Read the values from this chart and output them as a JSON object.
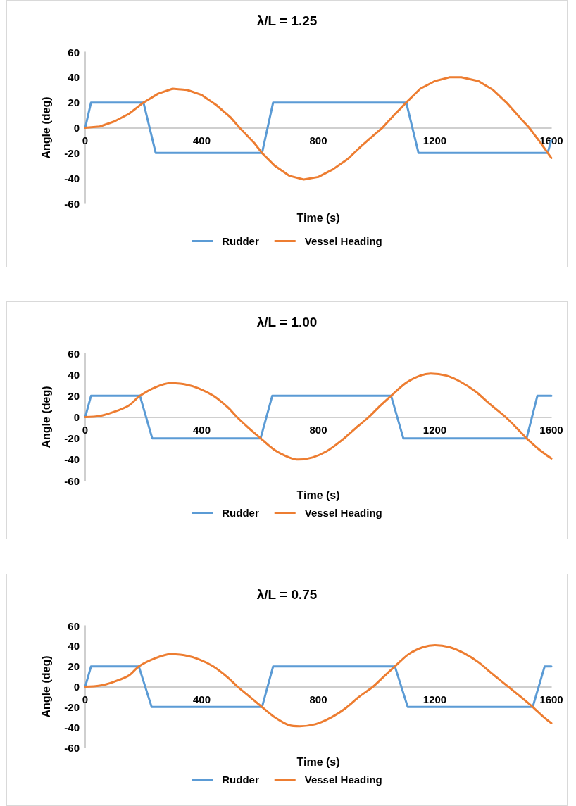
{
  "chart_data": [
    {
      "type": "line",
      "title": "λ/L = 1.25",
      "xlabel": "Time (s)",
      "ylabel": "Angle (deg)",
      "xlim": [
        0,
        1600
      ],
      "xticks": [
        0,
        400,
        800,
        1200,
        1600
      ],
      "ylim": [
        -60,
        60
      ],
      "yticks": [
        -60,
        -40,
        -20,
        0,
        20,
        40,
        60
      ],
      "grid": false,
      "legend": "bottom",
      "marker": "none",
      "line_style": "solid",
      "series": [
        {
          "name": "Rudder",
          "color": "#5b9bd5",
          "x": [
            0,
            20,
            200,
            242,
            607,
            645,
            1102,
            1144,
            1587,
            1600
          ],
          "values": [
            0,
            20,
            20,
            -20,
            -20,
            20,
            20,
            -20,
            -20,
            -10
          ]
        },
        {
          "name": "Vessel Heading",
          "color": "#ed7d31",
          "x": [
            0,
            50,
            100,
            150,
            200,
            250,
            300,
            350,
            400,
            450,
            500,
            530,
            580,
            607,
            650,
            700,
            750,
            800,
            850,
            900,
            950,
            1000,
            1020,
            1060,
            1102,
            1150,
            1200,
            1250,
            1291,
            1350,
            1400,
            1450,
            1500,
            1524,
            1560,
            1600
          ],
          "values": [
            0,
            1,
            5,
            11,
            20,
            27,
            31,
            30,
            26,
            18,
            8,
            0,
            -12,
            -20,
            -30,
            -38,
            -41,
            -39,
            -33,
            -25,
            -14,
            -4,
            0,
            10,
            20,
            31,
            37,
            40,
            40,
            37,
            30,
            19,
            6,
            0,
            -11,
            -24
          ]
        }
      ]
    },
    {
      "type": "line",
      "title": "λ/L = 1.00",
      "xlabel": "Time (s)",
      "ylabel": "Angle (deg)",
      "xlim": [
        0,
        1600
      ],
      "xticks": [
        0,
        400,
        800,
        1200,
        1600
      ],
      "ylim": [
        -60,
        60
      ],
      "yticks": [
        -60,
        -40,
        -20,
        0,
        20,
        40,
        60
      ],
      "grid": false,
      "legend": "bottom",
      "marker": "none",
      "line_style": "solid",
      "series": [
        {
          "name": "Rudder",
          "color": "#5b9bd5",
          "x": [
            0,
            20,
            188,
            230,
            602,
            642,
            1050,
            1092,
            1515,
            1552,
            1600
          ],
          "values": [
            0,
            20,
            20,
            -20,
            -20,
            20,
            20,
            -20,
            -20,
            20,
            20
          ]
        },
        {
          "name": "Vessel Heading",
          "color": "#ed7d31",
          "x": [
            0,
            50,
            100,
            150,
            188,
            240,
            292,
            340,
            390,
            440,
            490,
            521,
            560,
            602,
            650,
            700,
            731,
            780,
            830,
            880,
            930,
            973,
            1010,
            1050,
            1100,
            1150,
            1186,
            1240,
            1290,
            1340,
            1390,
            1443,
            1480,
            1515,
            1560,
            1600
          ],
          "values": [
            0,
            1,
            5,
            11,
            20,
            28,
            32,
            31,
            27,
            20,
            9,
            0,
            -10,
            -20,
            -31,
            -38,
            -40,
            -38,
            -32,
            -22,
            -10,
            0,
            10,
            20,
            32,
            39,
            41,
            39,
            33,
            24,
            12,
            0,
            -10,
            -20,
            -31,
            -39
          ]
        }
      ]
    },
    {
      "type": "line",
      "title": "λ/L = 0.75",
      "xlabel": "Time (s)",
      "ylabel": "Angle (deg)",
      "xlim": [
        0,
        1600
      ],
      "xticks": [
        0,
        400,
        800,
        1200,
        1600
      ],
      "ylim": [
        -60,
        60
      ],
      "yticks": [
        -60,
        -40,
        -20,
        0,
        20,
        40,
        60
      ],
      "grid": false,
      "legend": "bottom",
      "marker": "none",
      "line_style": "solid",
      "series": [
        {
          "name": "Rudder",
          "color": "#5b9bd5",
          "x": [
            0,
            20,
            184,
            228,
            607,
            645,
            1063,
            1107,
            1536,
            1577,
            1600
          ],
          "values": [
            0,
            20,
            20,
            -20,
            -20,
            20,
            20,
            -20,
            -20,
            20,
            20
          ]
        },
        {
          "name": "Vessel Heading",
          "color": "#ed7d31",
          "x": [
            0,
            50,
            100,
            150,
            184,
            240,
            294,
            340,
            390,
            440,
            490,
            523,
            565,
            607,
            650,
            700,
            737,
            790,
            840,
            890,
            940,
            988,
            1025,
            1063,
            1110,
            1160,
            1201,
            1250,
            1300,
            1350,
            1400,
            1452,
            1495,
            1536,
            1570,
            1600
          ],
          "values": [
            0,
            1,
            5,
            11,
            20,
            28,
            32,
            31,
            27,
            20,
            9,
            0,
            -10,
            -20,
            -30,
            -38,
            -39,
            -37,
            -31,
            -22,
            -10,
            0,
            10,
            20,
            32,
            39,
            41,
            39,
            33,
            24,
            12,
            0,
            -10,
            -20,
            -29,
            -36
          ]
        }
      ]
    }
  ]
}
